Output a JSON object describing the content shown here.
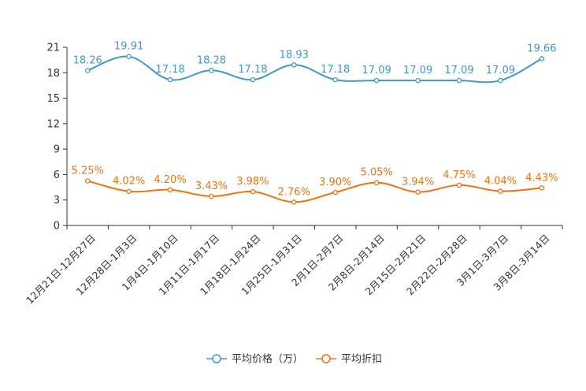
{
  "chart_data": {
    "type": "line",
    "title": "",
    "xlabel": "",
    "ylabel": "",
    "ylim": [
      0,
      21
    ],
    "yticks": [
      "0",
      "3",
      "6",
      "9",
      "12",
      "15",
      "18",
      "21"
    ],
    "categories": [
      "12月21日-12月27日",
      "12月28日-1月3日",
      "1月4日-1月10日",
      "1月11日-1月17日",
      "1月18日-1月24日",
      "1月25日-1月31日",
      "2月1日-2月7日",
      "2月8日-2月14日",
      "2月15日-2月21日",
      "2月22日-2月28日",
      "3月1日-3月7日",
      "3月8日-3月14日"
    ],
    "series": [
      {
        "name": "平均价格（万）",
        "color": "#3d9bc6",
        "values": [
          18.26,
          19.91,
          17.18,
          18.28,
          17.18,
          18.93,
          17.18,
          17.09,
          17.09,
          17.09,
          17.09,
          19.66
        ],
        "labels": [
          "18.26",
          "19.91",
          "17.18",
          "18.28",
          "17.18",
          "18.93",
          "17.18",
          "17.09",
          "17.09",
          "17.09",
          "17.09",
          "19.66"
        ]
      },
      {
        "name": "平均折扣",
        "color": "#f0730f",
        "values": [
          5.25,
          4.02,
          4.2,
          3.43,
          3.98,
          2.76,
          3.9,
          5.05,
          3.94,
          4.75,
          4.04,
          4.43
        ],
        "labels": [
          "5.25%",
          "4.02%",
          "4.20%",
          "3.43%",
          "3.98%",
          "2.76%",
          "3.90%",
          "5.05%",
          "3.94%",
          "4.75%",
          "4.04%",
          "4.43%"
        ]
      }
    ],
    "grid": false,
    "legend": "bottom-center"
  }
}
